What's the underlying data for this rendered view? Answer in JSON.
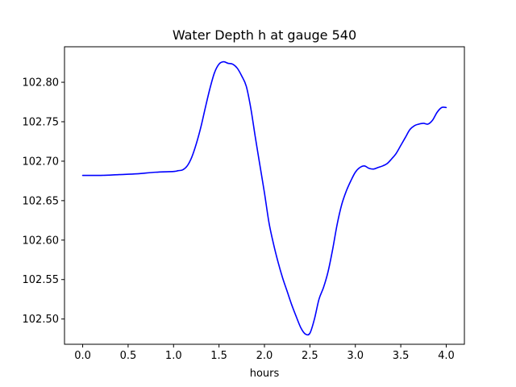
{
  "chart_data": {
    "type": "line",
    "title": "Water Depth h at gauge 540",
    "xlabel": "hours",
    "ylabel": "",
    "xlim": [
      -0.2,
      4.2
    ],
    "ylim": [
      102.468,
      102.845
    ],
    "xticks": [
      0.0,
      0.5,
      1.0,
      1.5,
      2.0,
      2.5,
      3.0,
      3.5,
      4.0
    ],
    "xtick_labels": [
      "0.0",
      "0.5",
      "1.0",
      "1.5",
      "2.0",
      "2.5",
      "3.0",
      "3.5",
      "4.0"
    ],
    "yticks": [
      102.5,
      102.55,
      102.6,
      102.65,
      102.7,
      102.75,
      102.8
    ],
    "ytick_labels": [
      "102.50",
      "102.55",
      "102.60",
      "102.65",
      "102.70",
      "102.75",
      "102.80"
    ],
    "grid": false,
    "series": [
      {
        "color": "#0000ff",
        "x": [
          0.0,
          0.2,
          0.4,
          0.6,
          0.8,
          1.0,
          1.05,
          1.1,
          1.15,
          1.2,
          1.25,
          1.3,
          1.35,
          1.4,
          1.45,
          1.5,
          1.55,
          1.6,
          1.65,
          1.7,
          1.75,
          1.8,
          1.85,
          1.9,
          1.95,
          2.0,
          2.05,
          2.1,
          2.15,
          2.2,
          2.25,
          2.3,
          2.35,
          2.4,
          2.45,
          2.5,
          2.55,
          2.6,
          2.65,
          2.7,
          2.75,
          2.8,
          2.85,
          2.9,
          2.95,
          3.0,
          3.05,
          3.1,
          3.15,
          3.2,
          3.25,
          3.3,
          3.35,
          3.4,
          3.45,
          3.5,
          3.55,
          3.6,
          3.65,
          3.7,
          3.75,
          3.8,
          3.85,
          3.9,
          3.95,
          4.0
        ],
        "y": [
          102.682,
          102.682,
          102.683,
          102.684,
          102.686,
          102.687,
          102.688,
          102.689,
          102.694,
          102.705,
          102.722,
          102.743,
          102.768,
          102.792,
          102.812,
          102.823,
          102.826,
          102.824,
          102.823,
          102.818,
          102.808,
          102.795,
          102.767,
          102.73,
          102.695,
          102.66,
          102.622,
          102.595,
          102.572,
          102.552,
          102.535,
          102.518,
          102.503,
          102.489,
          102.481,
          102.482,
          102.5,
          102.525,
          102.54,
          102.56,
          102.588,
          102.62,
          102.645,
          102.662,
          102.675,
          102.686,
          102.692,
          102.694,
          102.691,
          102.69,
          102.692,
          102.694,
          102.697,
          102.703,
          102.71,
          102.72,
          102.73,
          102.74,
          102.745,
          102.747,
          102.748,
          102.747,
          102.752,
          102.762,
          102.768,
          102.768
        ]
      }
    ]
  }
}
